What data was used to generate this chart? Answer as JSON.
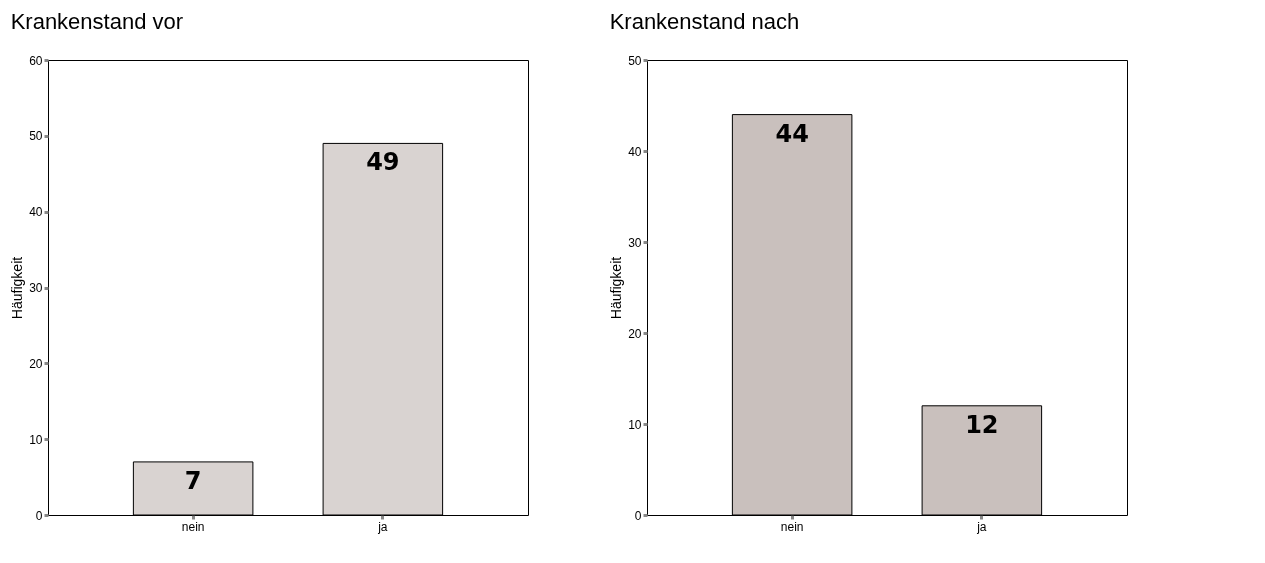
{
  "chart_data": [
    {
      "type": "bar",
      "title": "Krankenstand vor",
      "ylabel": "Häufigkeit",
      "categories": [
        "nein",
        "ja"
      ],
      "values": [
        7,
        49
      ],
      "color": "#d9d3d1",
      "ylim": [
        0,
        60
      ],
      "yticks": [
        0,
        10,
        20,
        30,
        40,
        50,
        60
      ],
      "data_labels": true,
      "grid": false
    },
    {
      "type": "bar",
      "title": "Krankenstand nach",
      "ylabel": "Häufigkeit",
      "categories": [
        "nein",
        "ja"
      ],
      "values": [
        44,
        12
      ],
      "color": "#c9c0bd",
      "ylim": [
        0,
        50
      ],
      "yticks": [
        0,
        10,
        20,
        30,
        40,
        50
      ],
      "data_labels": true,
      "grid": false
    }
  ]
}
